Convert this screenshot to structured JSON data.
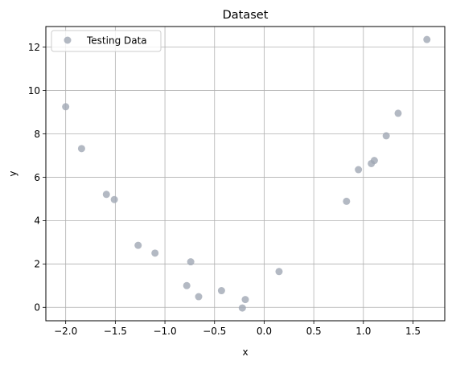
{
  "chart_data": {
    "type": "scatter",
    "title": "Dataset",
    "xlabel": "x",
    "ylabel": "y",
    "xlim": [
      -2.2,
      1.82
    ],
    "ylim": [
      -0.62,
      12.95
    ],
    "xticks": [
      -2.0,
      -1.5,
      -1.0,
      -0.5,
      0.0,
      0.5,
      1.0,
      1.5
    ],
    "xtick_labels": [
      "−2.0",
      "−1.5",
      "−1.0",
      "−0.5",
      "0.0",
      "0.5",
      "1.0",
      "1.5"
    ],
    "yticks": [
      0,
      2,
      4,
      6,
      8,
      10,
      12
    ],
    "ytick_labels": [
      "0",
      "2",
      "4",
      "6",
      "8",
      "10",
      "12"
    ],
    "grid": true,
    "legend_position": "upper-left",
    "series": [
      {
        "name": "Testing Data",
        "color": "#a0a8b4",
        "points": [
          {
            "x": -2.0,
            "y": 9.25
          },
          {
            "x": -1.84,
            "y": 7.32
          },
          {
            "x": -1.59,
            "y": 5.21
          },
          {
            "x": -1.51,
            "y": 4.97
          },
          {
            "x": -1.27,
            "y": 2.86
          },
          {
            "x": -1.1,
            "y": 2.5
          },
          {
            "x": -0.78,
            "y": 1.0
          },
          {
            "x": -0.74,
            "y": 2.1
          },
          {
            "x": -0.66,
            "y": 0.49
          },
          {
            "x": -0.43,
            "y": 0.77
          },
          {
            "x": -0.22,
            "y": -0.03
          },
          {
            "x": -0.19,
            "y": 0.36
          },
          {
            "x": 0.15,
            "y": 1.65
          },
          {
            "x": 0.83,
            "y": 4.89
          },
          {
            "x": 0.95,
            "y": 6.35
          },
          {
            "x": 1.08,
            "y": 6.63
          },
          {
            "x": 1.11,
            "y": 6.77
          },
          {
            "x": 1.23,
            "y": 7.91
          },
          {
            "x": 1.35,
            "y": 8.95
          },
          {
            "x": 1.64,
            "y": 12.35
          }
        ]
      }
    ]
  }
}
